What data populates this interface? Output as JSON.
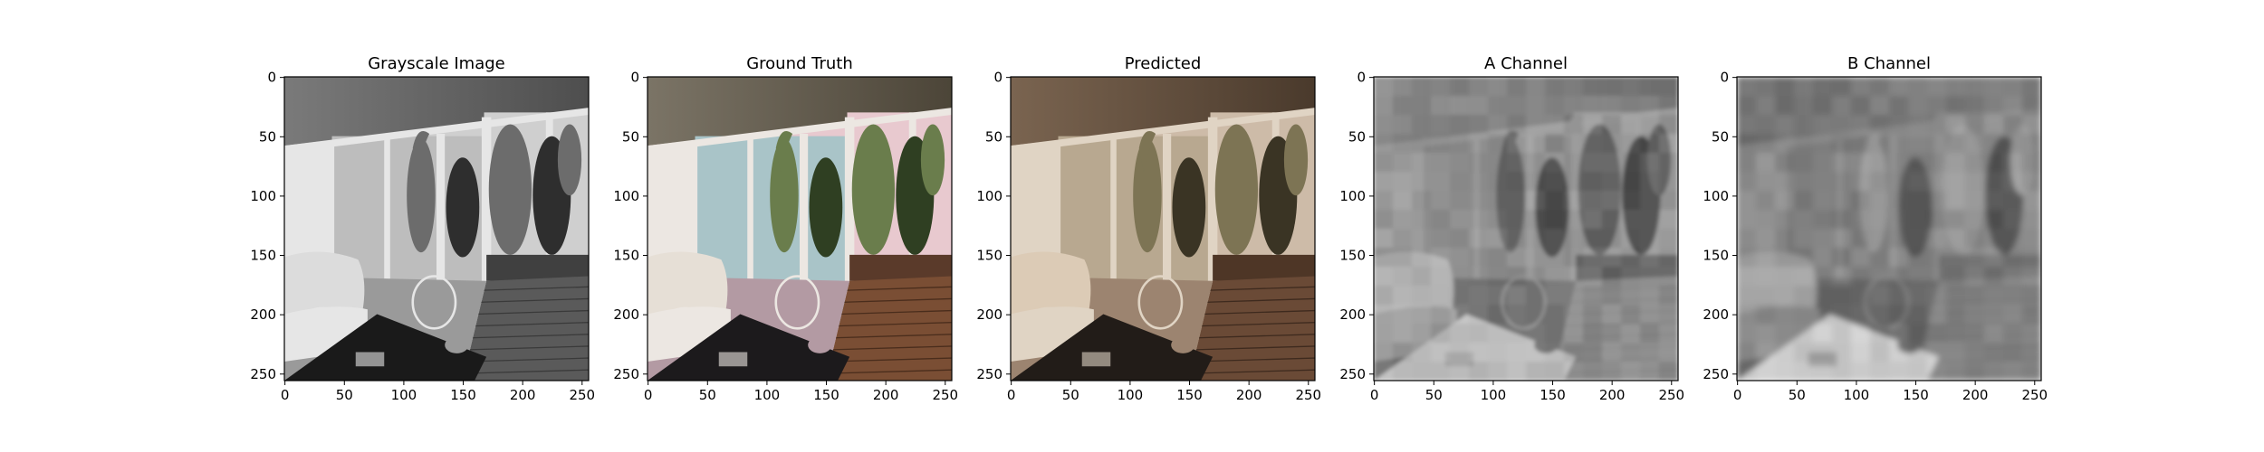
{
  "figure": {
    "background": "#ffffff"
  },
  "chart_data": [
    {
      "type": "image",
      "title": "Grayscale Image",
      "xlabel": "",
      "ylabel": "",
      "xlim": [
        0,
        255
      ],
      "ylim": [
        255,
        0
      ],
      "xticks": [
        "0",
        "50",
        "100",
        "150",
        "200",
        "250"
      ],
      "yticks": [
        "0",
        "50",
        "100",
        "150",
        "200",
        "250"
      ],
      "tint": "gray",
      "image_content": "grayscale photo of an indoor room with sliding glass doors opening onto a wooden deck with potted plants; armchair and wire chair with a dark glass table in the foreground"
    },
    {
      "type": "image",
      "title": "Ground Truth",
      "xlabel": "",
      "ylabel": "",
      "xlim": [
        0,
        255
      ],
      "ylim": [
        255,
        0
      ],
      "xticks": [
        "0",
        "50",
        "100",
        "150",
        "200",
        "250"
      ],
      "yticks": [
        "0",
        "50",
        "100",
        "150",
        "200",
        "250"
      ],
      "tint": "color",
      "image_content": "original color photo of the same room: pink walls, green plants, brown wooden deck"
    },
    {
      "type": "image",
      "title": "Predicted",
      "xlabel": "",
      "ylabel": "",
      "xlim": [
        0,
        255
      ],
      "ylim": [
        255,
        0
      ],
      "xticks": [
        "0",
        "50",
        "100",
        "150",
        "200",
        "250"
      ],
      "yticks": [
        "0",
        "50",
        "100",
        "150",
        "200",
        "250"
      ],
      "tint": "sepia",
      "image_content": "model-colorized version of the room with warm brownish/sepia tones"
    },
    {
      "type": "image",
      "title": "A Channel",
      "xlabel": "",
      "ylabel": "",
      "xlim": [
        0,
        255
      ],
      "ylim": [
        255,
        0
      ],
      "xticks": [
        "0",
        "50",
        "100",
        "150",
        "200",
        "250"
      ],
      "yticks": [
        "0",
        "50",
        "100",
        "150",
        "200",
        "250"
      ],
      "tint": "a-channel",
      "image_content": "blurry grayscale map of the predicted A chrominance channel"
    },
    {
      "type": "image",
      "title": "B Channel",
      "xlabel": "",
      "ylabel": "",
      "xlim": [
        0,
        255
      ],
      "ylim": [
        255,
        0
      ],
      "xticks": [
        "0",
        "50",
        "100",
        "150",
        "200",
        "250"
      ],
      "yticks": [
        "0",
        "50",
        "100",
        "150",
        "200",
        "250"
      ],
      "tint": "b-channel",
      "image_content": "blurry grayscale map of the predicted B chrominance channel"
    }
  ]
}
